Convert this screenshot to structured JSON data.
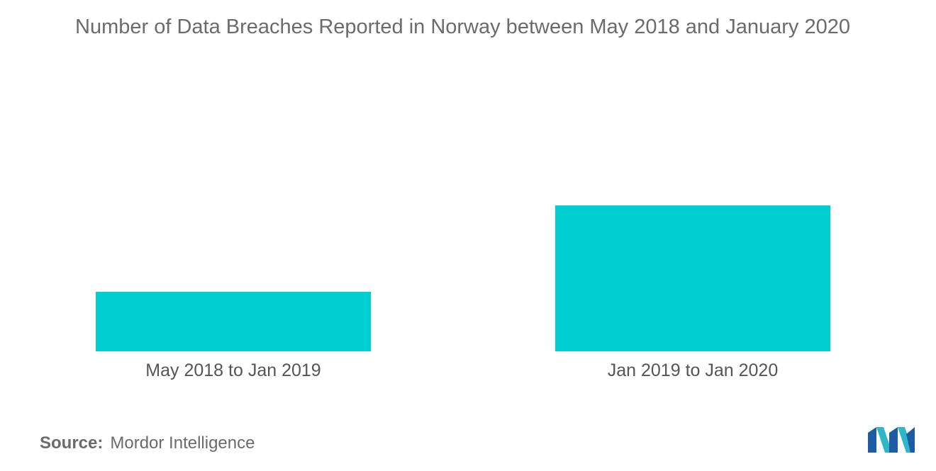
{
  "chart_data": {
    "type": "bar",
    "title": "Number of Data Breaches Reported in Norway between May 2018 and January 2020",
    "categories": [
      "May 2018 to Jan 2019",
      "Jan 2019 to Jan 2020"
    ],
    "values": [
      1,
      2.45
    ],
    "xlabel": "",
    "ylabel": "",
    "ylim": [
      0,
      4.9
    ],
    "grid": false,
    "legend": "none",
    "bar_color": "#00ced1"
  },
  "source": {
    "label": "Source:",
    "text": "Mordor Intelligence"
  },
  "logo": {
    "icon": "mordor-intelligence-logo-icon",
    "colors": [
      "#1d5ba4",
      "#2fb7c9"
    ]
  }
}
